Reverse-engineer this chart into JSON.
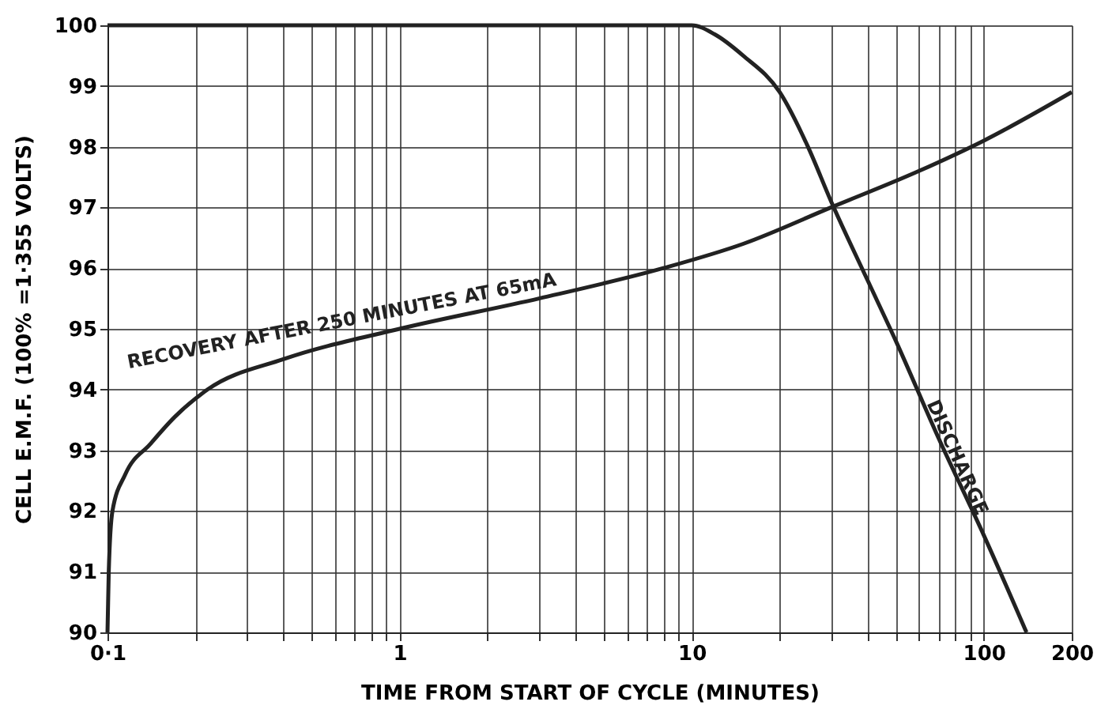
{
  "chart_data": {
    "type": "line",
    "xlabel": "TIME FROM START OF CYCLE (MINUTES)",
    "ylabel": "CELL E.M.F. (100% =1·355 VOLTS)",
    "log": "x",
    "grid": true,
    "line_style": "solid",
    "marker": "none",
    "xlim": [
      0.1,
      200
    ],
    "ylim": [
      90,
      100
    ],
    "xticks": [
      {
        "value": 0.1,
        "label": "0·1"
      },
      {
        "value": 0.2,
        "label": null
      },
      {
        "value": 0.3,
        "label": null
      },
      {
        "value": 0.4,
        "label": null
      },
      {
        "value": 0.5,
        "label": null
      },
      {
        "value": 0.6,
        "label": null
      },
      {
        "value": 0.7,
        "label": null
      },
      {
        "value": 0.8,
        "label": null
      },
      {
        "value": 0.9,
        "label": null
      },
      1,
      {
        "value": 2,
        "label": null
      },
      {
        "value": 3,
        "label": null
      },
      {
        "value": 4,
        "label": null
      },
      {
        "value": 5,
        "label": null
      },
      {
        "value": 6,
        "label": null
      },
      {
        "value": 7,
        "label": null
      },
      {
        "value": 8,
        "label": null
      },
      {
        "value": 9,
        "label": null
      },
      10,
      {
        "value": 20,
        "label": null
      },
      {
        "value": 30,
        "label": null
      },
      {
        "value": 40,
        "label": null
      },
      {
        "value": 50,
        "label": null
      },
      {
        "value": 60,
        "label": null
      },
      {
        "value": 70,
        "label": null
      },
      {
        "value": 80,
        "label": null
      },
      {
        "value": 90,
        "label": null
      },
      100,
      200
    ],
    "yticks": [
      90,
      91,
      92,
      93,
      94,
      95,
      96,
      97,
      98,
      99,
      100
    ],
    "series": [
      {
        "name": "RECOVERY AFTER 250 MINUTES AT 65mA",
        "color": "#222222",
        "x": [
          0.1,
          0.101,
          0.104,
          0.115,
          0.14,
          0.17,
          0.22,
          0.4,
          1,
          3,
          8,
          15,
          30,
          60,
          100,
          200
        ],
        "values": [
          90,
          91,
          92,
          92.6,
          93.1,
          93.55,
          94,
          94.5,
          95,
          95.5,
          96,
          96.4,
          97,
          97.6,
          98.1,
          98.9
        ]
      },
      {
        "name": "DISCHARGE",
        "color": "#222222",
        "x": [
          0.1,
          10,
          12,
          15,
          20,
          25,
          30,
          40,
          50,
          70,
          100,
          140
        ],
        "values": [
          100,
          100,
          99.85,
          99.5,
          98.9,
          98,
          97.1,
          95.8,
          94.8,
          93.2,
          91.6,
          90
        ]
      }
    ]
  }
}
